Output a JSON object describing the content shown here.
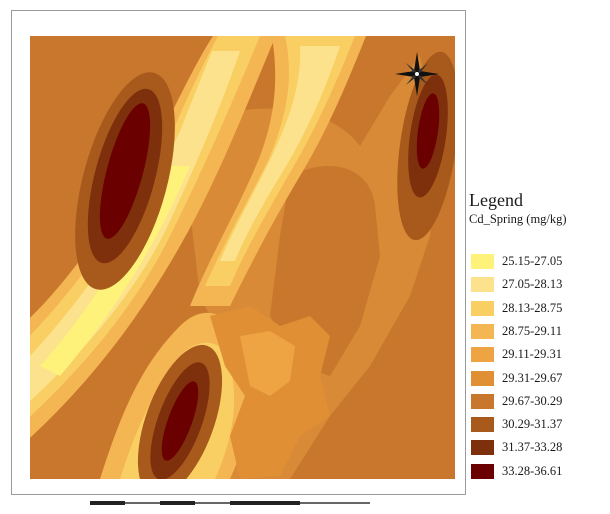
{
  "legend": {
    "title": "Legend",
    "subtitle": "Cd_Spring (mg/kg)",
    "classes": [
      {
        "label": "25.15-27.05",
        "color": "#fff27a"
      },
      {
        "label": "27.05-28.13",
        "color": "#fce28c"
      },
      {
        "label": "28.13-28.75",
        "color": "#f9cf63"
      },
      {
        "label": "28.75-29.11",
        "color": "#f4b652"
      },
      {
        "label": "29.11-29.31",
        "color": "#eea443"
      },
      {
        "label": "29.31-29.67",
        "color": "#e08f35"
      },
      {
        "label": "29.67-30.29",
        "color": "#c8772c"
      },
      {
        "label": "30.29-31.37",
        "color": "#a85a1c"
      },
      {
        "label": "31.37-33.28",
        "color": "#7e2f0c"
      },
      {
        "label": "33.28-36.61",
        "color": "#6a0000"
      }
    ]
  },
  "map": {
    "north_arrow_icon": "compass-rose-icon",
    "scale_bar": "scale-bar"
  }
}
